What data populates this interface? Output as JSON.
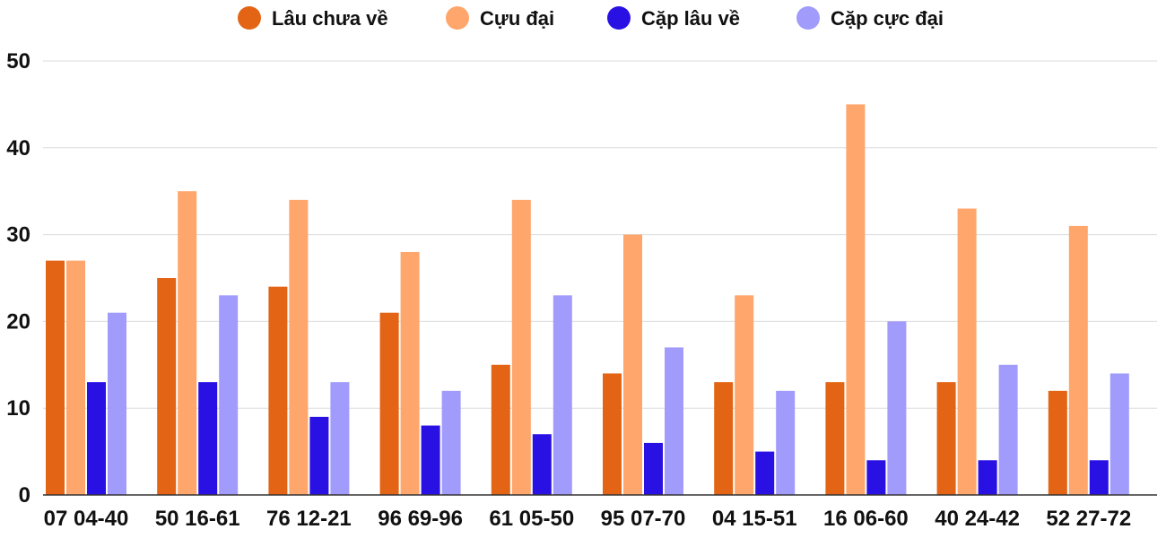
{
  "chart_data": {
    "type": "bar",
    "categories": [
      "07 04-40",
      "50 16-61",
      "76 12-21",
      "96 69-96",
      "61 05-50",
      "95 07-70",
      "04 15-51",
      "16 06-60",
      "40 24-42",
      "52 27-72"
    ],
    "series": [
      {
        "name": "Lâu chưa về",
        "color": "#e36414",
        "values": [
          27,
          25,
          24,
          21,
          15,
          14,
          13,
          13,
          13,
          12
        ]
      },
      {
        "name": "Cựu đại",
        "color": "#fea66b",
        "values": [
          27,
          35,
          34,
          28,
          34,
          30,
          23,
          45,
          33,
          31
        ]
      },
      {
        "name": "Cặp lâu về",
        "color": "#2a11e3",
        "values": [
          13,
          13,
          9,
          8,
          7,
          6,
          5,
          4,
          4,
          4
        ]
      },
      {
        "name": "Cặp cực đại",
        "color": "#a19bfc",
        "values": [
          21,
          23,
          13,
          12,
          23,
          17,
          12,
          20,
          15,
          14
        ]
      }
    ],
    "y_ticks": [
      "0",
      "10",
      "20",
      "30",
      "40",
      "50"
    ],
    "ylim": [
      0,
      50
    ],
    "grid": true,
    "legend_position": "top-center"
  }
}
